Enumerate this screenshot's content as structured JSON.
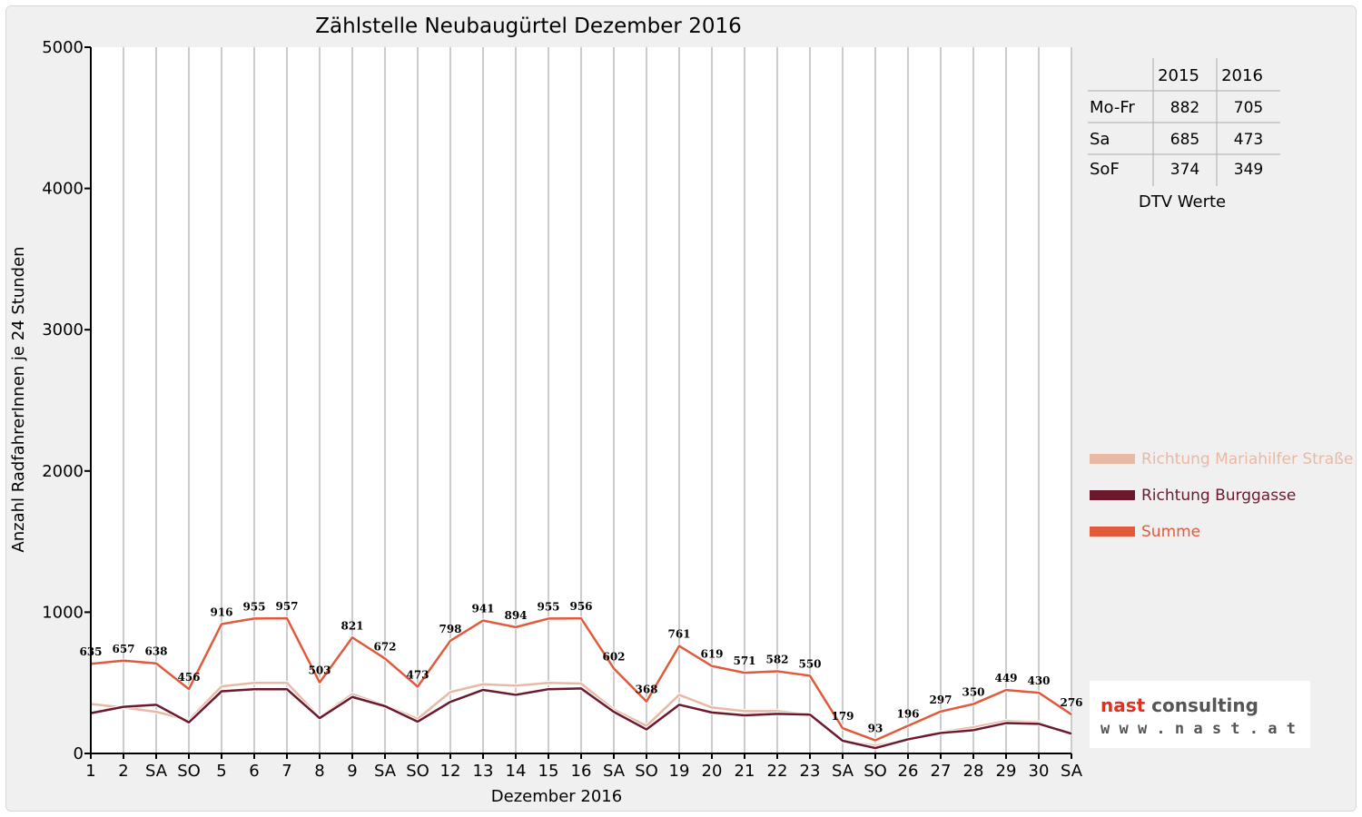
{
  "chart_data": {
    "type": "line",
    "title": "Zählstelle Neubaugürtel Dezember 2016",
    "xlabel": "Dezember 2016",
    "ylabel": "Anzahl RadfahrerInnen je 24 Stunden",
    "ylim": [
      0,
      5000
    ],
    "yticks": [
      "0",
      "1000",
      "2000",
      "3000",
      "4000",
      "5000"
    ],
    "grid": true,
    "legend_position": "right",
    "categories": [
      "1",
      "2",
      "SA",
      "SO",
      "5",
      "6",
      "7",
      "8",
      "9",
      "SA",
      "SO",
      "12",
      "13",
      "14",
      "15",
      "16",
      "SA",
      "SO",
      "19",
      "20",
      "21",
      "22",
      "23",
      "SA",
      "SO",
      "26",
      "27",
      "28",
      "29",
      "30",
      "SA"
    ],
    "holiday_flags": [
      false,
      false,
      false,
      true,
      false,
      false,
      false,
      true,
      false,
      false,
      true,
      false,
      false,
      false,
      false,
      false,
      false,
      true,
      false,
      false,
      false,
      false,
      false,
      false,
      true,
      true,
      false,
      false,
      false,
      false,
      false
    ],
    "series": [
      {
        "name": "Richtung Mariahilfer Straße",
        "color": "#e8b9a5",
        "values": [
          350,
          325,
          295,
          235,
          475,
          500,
          500,
          255,
          420,
          340,
          245,
          435,
          490,
          480,
          500,
          495,
          310,
          195,
          415,
          325,
          300,
          300,
          275,
          90,
          55,
          95,
          150,
          185,
          230,
          220,
          135
        ]
      },
      {
        "name": "Richtung Burggasse",
        "color": "#6b1a2e",
        "values": [
          285,
          330,
          345,
          220,
          440,
          455,
          455,
          250,
          400,
          335,
          225,
          365,
          450,
          415,
          455,
          460,
          295,
          170,
          345,
          290,
          270,
          280,
          275,
          90,
          38,
          100,
          145,
          165,
          215,
          210,
          140
        ]
      },
      {
        "name": "Summe",
        "color": "#e05a3c",
        "values": [
          635,
          657,
          638,
          456,
          916,
          955,
          957,
          503,
          821,
          672,
          473,
          798,
          941,
          894,
          955,
          956,
          602,
          368,
          761,
          619,
          571,
          582,
          550,
          179,
          93,
          196,
          297,
          350,
          449,
          430,
          276
        ]
      }
    ],
    "data_labels": [
      "635",
      "657",
      "638",
      "456",
      "916",
      "955",
      "957",
      "503",
      "821",
      "672",
      "473",
      "798",
      "941",
      "894",
      "955",
      "956",
      "602",
      "368",
      "761",
      "619",
      "571",
      "582",
      "550",
      "179",
      "93",
      "196",
      "297",
      "350",
      "449",
      "430",
      "276"
    ]
  },
  "dtv_table": {
    "columns": [
      "2015",
      "2016"
    ],
    "rows": [
      {
        "label": "Mo-Fr",
        "v2015": "882",
        "v2016": "705"
      },
      {
        "label": "Sa",
        "v2015": "685",
        "v2016": "473"
      },
      {
        "label": "SoF",
        "v2015": "374",
        "v2016": "349"
      }
    ],
    "caption": "DTV Werte"
  },
  "logo": {
    "name": "nast consulting",
    "url": "w w w . n a s t . a t"
  },
  "colors": {
    "holiday": "#ff0000",
    "grid": "#cccccc",
    "logo_red": "#e0301e"
  }
}
